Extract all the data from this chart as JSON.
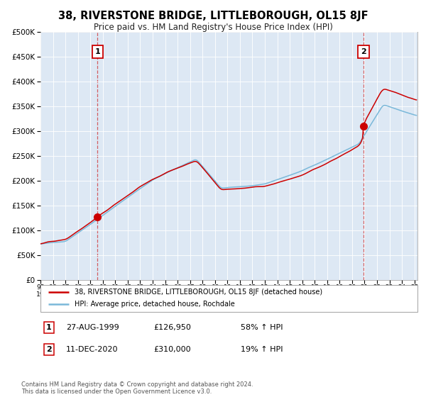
{
  "title": "38, RIVERSTONE BRIDGE, LITTLEBOROUGH, OL15 8JF",
  "subtitle": "Price paid vs. HM Land Registry's House Price Index (HPI)",
  "legend_line1": "38, RIVERSTONE BRIDGE, LITTLEBOROUGH, OL15 8JF (detached house)",
  "legend_line2": "HPI: Average price, detached house, Rochdale",
  "annotation1_label": "1",
  "annotation1_date": "27-AUG-1999",
  "annotation1_price": 126950,
  "annotation1_hpi": "58% ↑ HPI",
  "annotation2_label": "2",
  "annotation2_date": "11-DEC-2020",
  "annotation2_price": 310000,
  "annotation2_hpi": "19% ↑ HPI",
  "footer": "Contains HM Land Registry data © Crown copyright and database right 2024.\nThis data is licensed under the Open Government Licence v3.0.",
  "hpi_color": "#7ab8d9",
  "property_color": "#cc0000",
  "background_color": "#dde8f4",
  "ylim": [
    0,
    500000
  ],
  "ylabel_ticks": [
    0,
    50000,
    100000,
    150000,
    200000,
    250000,
    300000,
    350000,
    400000,
    450000,
    500000
  ]
}
